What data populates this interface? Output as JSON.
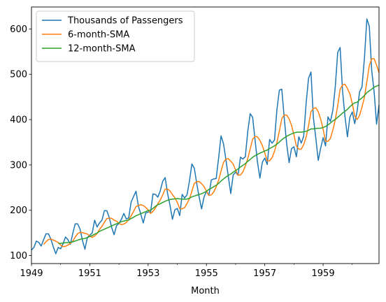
{
  "chart_data": {
    "type": "line",
    "xlabel": "Month",
    "ylabel": "",
    "x_start": "1949-01",
    "x_end": "1960-12",
    "xlim": [
      "1949-01",
      "1960-12"
    ],
    "ylim": [
      82.4,
      648.4
    ],
    "x_tick_labels": [
      "1949",
      "1951",
      "1953",
      "1955",
      "1957",
      "1959"
    ],
    "y_ticks": [
      100,
      200,
      300,
      400,
      500,
      600
    ],
    "grid": false,
    "legend_position": "upper left",
    "series": [
      {
        "name": "Thousands of Passengers",
        "color": "#1f77b4",
        "values": [
          112,
          118,
          132,
          129,
          121,
          135,
          148,
          148,
          136,
          119,
          104,
          118,
          115,
          126,
          141,
          135,
          125,
          149,
          170,
          170,
          158,
          133,
          114,
          140,
          145,
          150,
          178,
          163,
          172,
          178,
          199,
          199,
          184,
          162,
          146,
          166,
          171,
          180,
          193,
          181,
          183,
          218,
          230,
          242,
          209,
          191,
          172,
          194,
          196,
          196,
          236,
          235,
          229,
          243,
          264,
          272,
          237,
          211,
          180,
          201,
          204,
          188,
          235,
          227,
          234,
          264,
          302,
          293,
          259,
          229,
          203,
          229,
          242,
          233,
          267,
          269,
          270,
          315,
          364,
          347,
          312,
          274,
          237,
          278,
          284,
          277,
          317,
          313,
          318,
          374,
          413,
          405,
          355,
          306,
          271,
          306,
          315,
          301,
          356,
          348,
          355,
          422,
          465,
          467,
          404,
          347,
          305,
          336,
          340,
          318,
          362,
          348,
          363,
          435,
          491,
          505,
          404,
          359,
          310,
          337,
          360,
          342,
          406,
          396,
          420,
          472,
          548,
          559,
          463,
          407,
          362,
          405,
          417,
          391,
          419,
          461,
          472,
          535,
          622,
          606,
          508,
          461,
          390,
          432
        ]
      },
      {
        "name": "6-month-SMA",
        "color": "#ff7f0e",
        "window": 6,
        "values": []
      },
      {
        "name": "12-month-SMA",
        "color": "#2ca02c",
        "window": 12,
        "values": []
      }
    ]
  }
}
